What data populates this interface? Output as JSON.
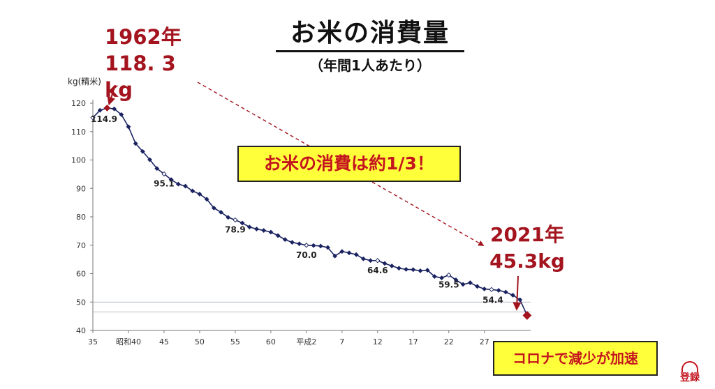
{
  "title": "お米の消費量",
  "subtitle": "（年間1人あたり）",
  "annotations": {
    "peak": {
      "year": "1962年",
      "value": "118. 3 kg"
    },
    "latest": {
      "year": "2021年",
      "value": "45.3kg"
    },
    "callout": "お米の消費は約1/3！",
    "corona": "コロナで減少が加速"
  },
  "logo_text": "登録",
  "colors": {
    "line": "#1a2360",
    "accent": "#a3141e",
    "highlight": "#ffff3a"
  },
  "chart_data": {
    "type": "line",
    "ylabel": "kg(精米)",
    "ylim": [
      40,
      120
    ],
    "yticks": [
      40,
      50,
      60,
      70,
      80,
      90,
      100,
      110,
      120
    ],
    "xlim": [
      1960,
      2021.5
    ],
    "xticks": [
      {
        "x": 1960,
        "label": "35"
      },
      {
        "x": 1965,
        "label": "昭和40"
      },
      {
        "x": 1970,
        "label": "45"
      },
      {
        "x": 1975,
        "label": "50"
      },
      {
        "x": 1980,
        "label": "55"
      },
      {
        "x": 1985,
        "label": "60"
      },
      {
        "x": 1990,
        "label": "平成2"
      },
      {
        "x": 1995,
        "label": "7"
      },
      {
        "x": 2000,
        "label": "12"
      },
      {
        "x": 2005,
        "label": "17"
      },
      {
        "x": 2010,
        "label": "22"
      },
      {
        "x": 2015,
        "label": "27"
      }
    ],
    "reference_lines": [
      50,
      46.5
    ],
    "grid": false,
    "series": [
      {
        "x": [
          1960,
          1961,
          1962,
          1963,
          1964,
          1965,
          1966,
          1967,
          1968,
          1969,
          1970,
          1971,
          1972,
          1973,
          1974,
          1975,
          1976,
          1977,
          1978,
          1979,
          1980,
          1981,
          1982,
          1983,
          1984,
          1985,
          1986,
          1987,
          1988,
          1989,
          1990,
          1991,
          1992,
          1993,
          1994,
          1995,
          1996,
          1997,
          1998,
          1999,
          2000,
          2001,
          2002,
          2003,
          2004,
          2005,
          2006,
          2007,
          2008,
          2009,
          2010,
          2011,
          2012,
          2013,
          2014,
          2015,
          2016,
          2017,
          2018,
          2019,
          2020,
          2021
        ],
        "values": [
          114.9,
          117.5,
          118.3,
          118.0,
          116.0,
          111.7,
          105.8,
          103.0,
          100.1,
          97.0,
          95.1,
          93.1,
          91.5,
          90.8,
          89.1,
          88.0,
          86.2,
          83.1,
          81.6,
          79.8,
          78.9,
          77.8,
          76.4,
          75.7,
          75.2,
          74.6,
          73.4,
          72.0,
          71.0,
          70.5,
          70.0,
          69.9,
          69.7,
          69.2,
          66.2,
          67.8,
          67.3,
          66.7,
          65.2,
          64.6,
          64.6,
          63.6,
          62.7,
          61.9,
          61.5,
          61.4,
          61.0,
          61.2,
          59.0,
          58.5,
          59.5,
          57.8,
          56.2,
          56.8,
          55.5,
          54.6,
          54.4,
          54.1,
          53.5,
          52.4,
          50.8,
          45.3
        ],
        "hollow_x": [
          1960,
          1970,
          1980,
          1990,
          2000,
          2010,
          2016
        ],
        "highlight_x": [
          1962,
          2021
        ]
      }
    ],
    "data_labels": [
      {
        "x": 1960,
        "text": "114.9"
      },
      {
        "x": 1970,
        "text": "95.1"
      },
      {
        "x": 1980,
        "text": "78.9"
      },
      {
        "x": 1990,
        "text": "70.0"
      },
      {
        "x": 2000,
        "text": "64.6"
      },
      {
        "x": 2010,
        "text": "59.5"
      },
      {
        "x": 2016,
        "text": "54.4"
      }
    ]
  }
}
